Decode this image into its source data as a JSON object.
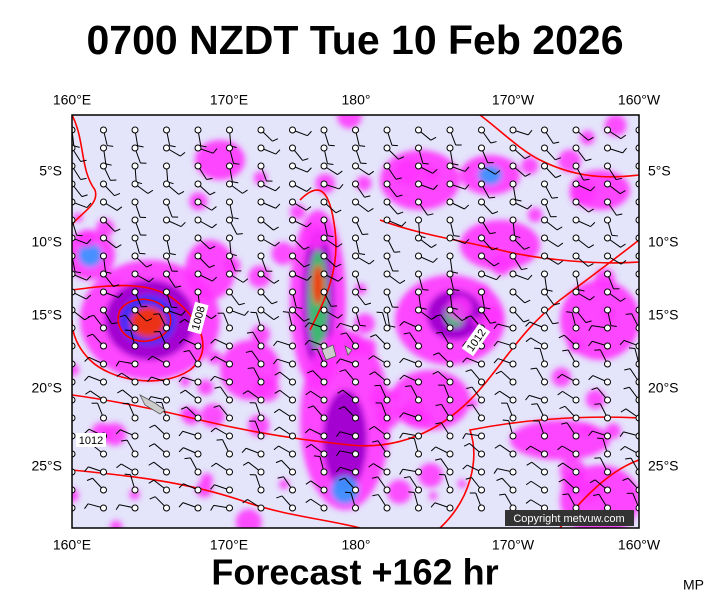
{
  "header": {
    "title": "0700 NZDT Tue 10 Feb 2026"
  },
  "map": {
    "lon_labels_top": [
      "160°E",
      "170°E",
      "180°",
      "170°W",
      "160°W"
    ],
    "lon_labels_bottom": [
      "160°E",
      "170°E",
      "180°",
      "170°W",
      "160°W"
    ],
    "lat_labels_left": [
      "5°S",
      "10°S",
      "15°S",
      "20°S",
      "25°S"
    ],
    "lat_labels_right": [
      "5°S",
      "10°S",
      "15°S",
      "20°S",
      "25°S"
    ],
    "contour_labels": [
      "1008",
      "1012",
      "1012"
    ],
    "copyright": "Copyright metvuw.com"
  },
  "footer": {
    "forecast": "Forecast +162 hr",
    "corner": "MP"
  }
}
